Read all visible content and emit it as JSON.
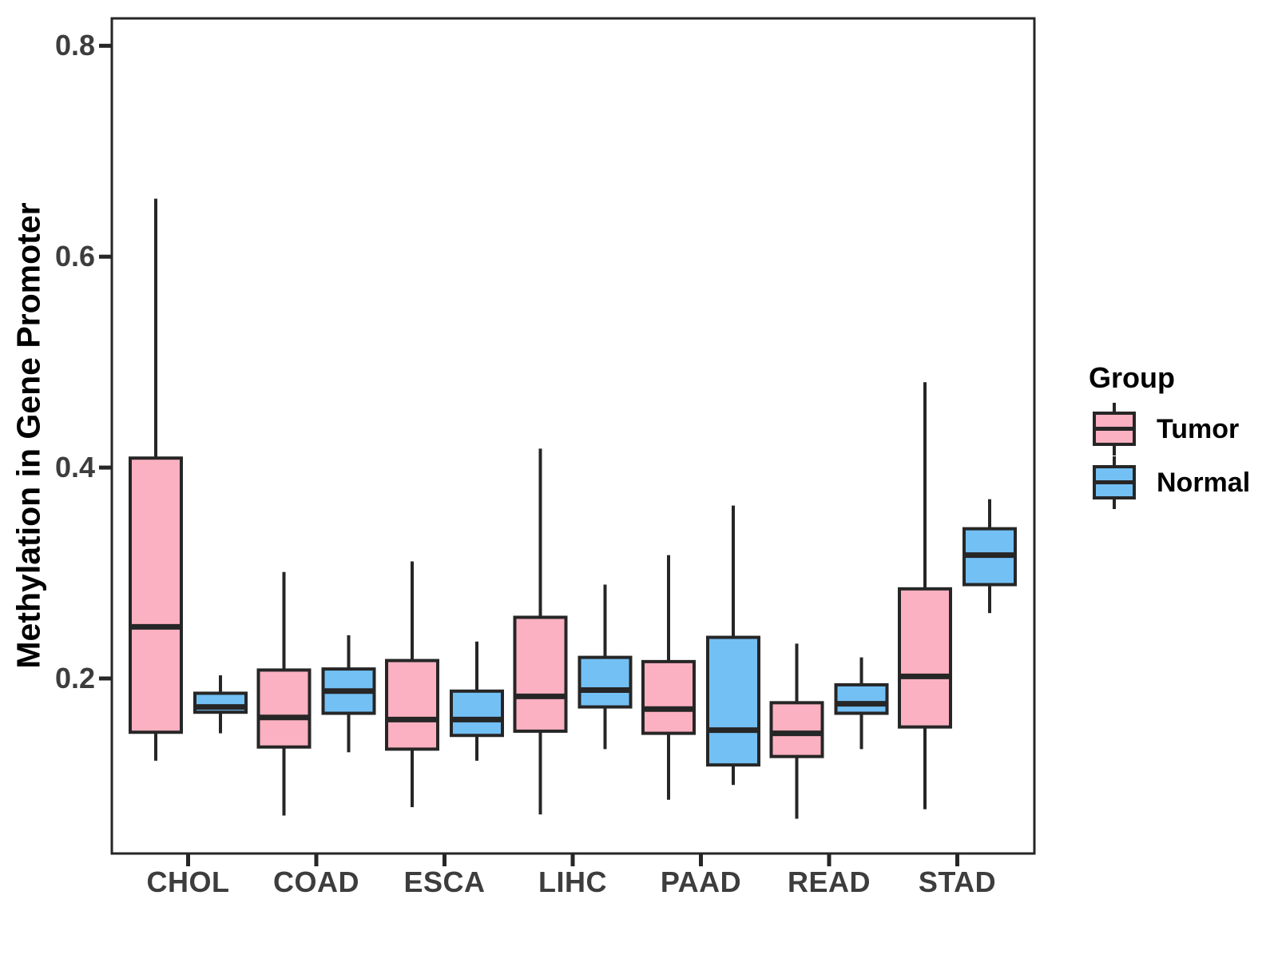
{
  "chart_data": {
    "type": "boxplot",
    "title": "",
    "xlabel": "",
    "ylabel": "Methylation in Gene Promoter",
    "categories": [
      "CHOL",
      "COAD",
      "ESCA",
      "LIHC",
      "PAAD",
      "READ",
      "STAD"
    ],
    "y_ticks": [
      {
        "label": "0.2",
        "value": 0.2
      },
      {
        "label": "0.4",
        "value": 0.4
      },
      {
        "label": "0.6",
        "value": 0.6
      },
      {
        "label": "0.8",
        "value": 0.8
      }
    ],
    "ylim": [
      0.034,
      0.826
    ],
    "grid": false,
    "legend_position": "right",
    "legend": {
      "title": "Group",
      "entries": [
        {
          "label": "Tumor",
          "color": "#FBB1C1"
        },
        {
          "label": "Normal",
          "color": "#73C0F5"
        }
      ]
    },
    "style": {
      "line_color": "#262626",
      "panel_background": "#ffffff",
      "box_border_width": 4,
      "median_line_width": 7
    },
    "groups": [
      {
        "name": "Tumor",
        "color": "#FBB1C1",
        "boxes": [
          {
            "category": "CHOL",
            "min": 0.122,
            "q1": 0.149,
            "median": 0.249,
            "q3": 0.409,
            "max": 0.655
          },
          {
            "category": "COAD",
            "min": 0.07,
            "q1": 0.135,
            "median": 0.163,
            "q3": 0.208,
            "max": 0.301
          },
          {
            "category": "ESCA",
            "min": 0.078,
            "q1": 0.133,
            "median": 0.161,
            "q3": 0.217,
            "max": 0.311
          },
          {
            "category": "LIHC",
            "min": 0.071,
            "q1": 0.15,
            "median": 0.183,
            "q3": 0.258,
            "max": 0.418
          },
          {
            "category": "PAAD",
            "min": 0.085,
            "q1": 0.148,
            "median": 0.171,
            "q3": 0.216,
            "max": 0.317
          },
          {
            "category": "READ",
            "min": 0.067,
            "q1": 0.126,
            "median": 0.148,
            "q3": 0.177,
            "max": 0.233
          },
          {
            "category": "STAD",
            "min": 0.076,
            "q1": 0.154,
            "median": 0.202,
            "q3": 0.285,
            "max": 0.481
          }
        ]
      },
      {
        "name": "Normal",
        "color": "#73C0F5",
        "boxes": [
          {
            "category": "CHOL",
            "min": 0.148,
            "q1": 0.168,
            "median": 0.173,
            "q3": 0.186,
            "max": 0.203
          },
          {
            "category": "COAD",
            "min": 0.13,
            "q1": 0.167,
            "median": 0.188,
            "q3": 0.209,
            "max": 0.241
          },
          {
            "category": "ESCA",
            "min": 0.122,
            "q1": 0.146,
            "median": 0.161,
            "q3": 0.188,
            "max": 0.235
          },
          {
            "category": "LIHC",
            "min": 0.133,
            "q1": 0.173,
            "median": 0.189,
            "q3": 0.22,
            "max": 0.289
          },
          {
            "category": "PAAD",
            "min": 0.099,
            "q1": 0.118,
            "median": 0.151,
            "q3": 0.239,
            "max": 0.364
          },
          {
            "category": "READ",
            "min": 0.133,
            "q1": 0.167,
            "median": 0.176,
            "q3": 0.194,
            "max": 0.22
          },
          {
            "category": "STAD",
            "min": 0.262,
            "q1": 0.289,
            "median": 0.317,
            "q3": 0.342,
            "max": 0.37
          }
        ]
      }
    ]
  }
}
